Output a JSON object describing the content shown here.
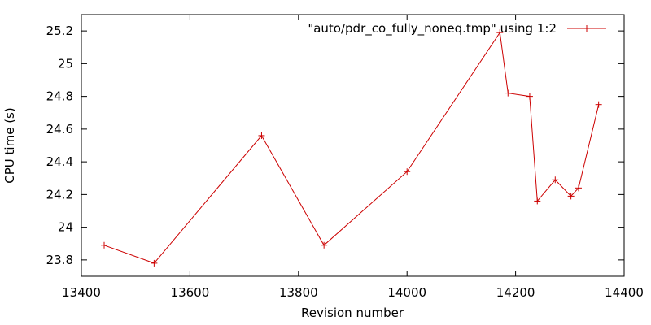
{
  "chart_data": {
    "type": "line",
    "title": "",
    "xlabel": "Revision number",
    "ylabel": "CPU time (s)",
    "xlim": [
      13400,
      14400
    ],
    "ylim": [
      23.7,
      25.3
    ],
    "xticks": [
      13400,
      13600,
      13800,
      14000,
      14200,
      14400
    ],
    "xtick_labels": [
      "13400",
      "13600",
      "13800",
      "14000",
      "14200",
      "14400"
    ],
    "yticks": [
      23.8,
      24.0,
      24.2,
      24.4,
      24.6,
      24.8,
      25.0,
      25.2
    ],
    "ytick_labels": [
      "23.8",
      "24",
      "24.2",
      "24.4",
      "24.6",
      "24.8",
      "25",
      "25.2"
    ],
    "grid": false,
    "legend_position": "top-right",
    "series": [
      {
        "name": "\"auto/pdr_co_fully_noneq.tmp\" using 1:2",
        "color": "#cc0000",
        "marker": "plus",
        "x": [
          13442,
          13534,
          13732,
          13847,
          14000,
          14171,
          14186,
          14226,
          14240,
          14273,
          14302,
          14316,
          14353
        ],
        "y": [
          23.89,
          23.78,
          24.56,
          23.89,
          24.34,
          25.19,
          24.82,
          24.8,
          24.16,
          24.29,
          24.19,
          24.24,
          24.75
        ]
      }
    ]
  }
}
